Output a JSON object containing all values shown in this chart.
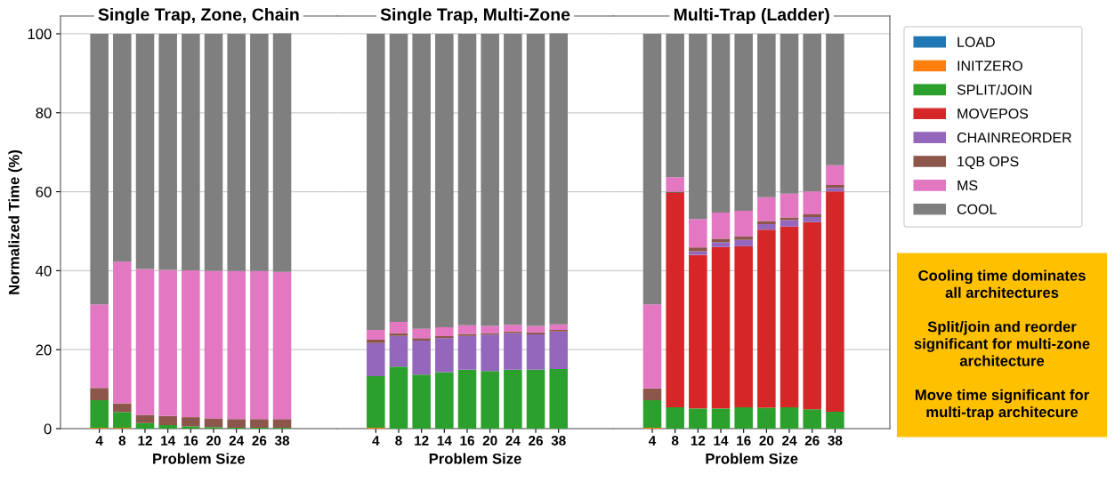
{
  "chart_data": [
    {
      "type": "bar",
      "stacked": true,
      "title": "Single Trap, Zone, Chain",
      "xlabel": "Problem Size",
      "ylabel": "Normalized Time (%)",
      "categories": [
        "4",
        "8",
        "12",
        "14",
        "16",
        "20",
        "24",
        "26",
        "38"
      ],
      "ylim": [
        0,
        104.5
      ],
      "yticks": [
        0,
        20,
        40,
        60,
        80,
        100
      ],
      "grid": "y",
      "tick_labels": true,
      "series": [
        {
          "color": "#1f77b4",
          "values": [
            0,
            0,
            0,
            0,
            0,
            0,
            0,
            0,
            0
          ]
        },
        {
          "color": "#ff7f0e",
          "values": [
            0.2,
            0.2,
            0,
            0,
            0,
            0,
            0,
            0,
            0
          ]
        },
        {
          "color": "#2ca02c",
          "values": [
            7.0,
            4.0,
            1.4,
            0.9,
            0.6,
            0.4,
            0.2,
            0.2,
            0.2
          ]
        },
        {
          "color": "#d62728",
          "values": [
            0,
            0,
            0,
            0,
            0,
            0,
            0,
            0,
            0
          ]
        },
        {
          "color": "#9467bd",
          "values": [
            0,
            0,
            0,
            0,
            0,
            0,
            0,
            0,
            0
          ]
        },
        {
          "color": "#8c564b",
          "values": [
            3.1,
            2.2,
            2.1,
            2.3,
            2.3,
            2.2,
            2.2,
            2.2,
            2.2
          ]
        },
        {
          "color": "#e377c2",
          "values": [
            21.2,
            35.9,
            36.9,
            37.0,
            37.2,
            37.4,
            37.5,
            37.5,
            37.3
          ]
        },
        {
          "color": "#7f7f7f",
          "values": [
            68.5,
            57.7,
            59.6,
            59.8,
            59.9,
            60.0,
            60.1,
            60.1,
            60.4
          ]
        }
      ]
    },
    {
      "type": "bar",
      "stacked": true,
      "title": "Single Trap, Multi-Zone",
      "xlabel": "Problem Size",
      "categories": [
        "4",
        "8",
        "12",
        "14",
        "16",
        "20",
        "24",
        "26",
        "38"
      ],
      "ylim": [
        0,
        104.5
      ],
      "yticks": [
        0,
        20,
        40,
        60,
        80,
        100
      ],
      "grid": "y",
      "tick_labels": "x",
      "series": [
        {
          "color": "#1f77b4",
          "values": [
            0,
            0,
            0,
            0,
            0,
            0,
            0,
            0,
            0
          ]
        },
        {
          "color": "#ff7f0e",
          "values": [
            0.2,
            0,
            0,
            0,
            0,
            0,
            0,
            0,
            0
          ]
        },
        {
          "color": "#2ca02c",
          "values": [
            13.1,
            15.7,
            13.7,
            14.3,
            14.9,
            14.6,
            14.9,
            14.9,
            15.1
          ]
        },
        {
          "color": "#d62728",
          "values": [
            0,
            0,
            0,
            0,
            0,
            0,
            0,
            0,
            0
          ]
        },
        {
          "color": "#9467bd",
          "values": [
            8.4,
            7.8,
            8.6,
            8.6,
            8.6,
            9.2,
            9.3,
            9.0,
            9.5
          ]
        },
        {
          "color": "#8c564b",
          "values": [
            0.8,
            0.7,
            0.6,
            0.5,
            0.5,
            0.4,
            0.4,
            0.5,
            0.4
          ]
        },
        {
          "color": "#e377c2",
          "values": [
            2.5,
            2.8,
            2.4,
            2.3,
            2.2,
            1.8,
            1.7,
            1.6,
            1.4
          ]
        },
        {
          "color": "#7f7f7f",
          "values": [
            75.0,
            73.0,
            74.7,
            74.3,
            73.8,
            74.0,
            73.7,
            74.0,
            73.7
          ]
        }
      ]
    },
    {
      "type": "bar",
      "stacked": true,
      "title": "Multi-Trap (Ladder)",
      "xlabel": "Problem Size",
      "categories": [
        "4",
        "8",
        "12",
        "14",
        "16",
        "20",
        "24",
        "26",
        "38"
      ],
      "ylim": [
        0,
        104.5
      ],
      "yticks": [
        0,
        20,
        40,
        60,
        80,
        100
      ],
      "grid": "y",
      "tick_labels": "x",
      "legend": "right",
      "annotations": [
        "Cooling time dominates\nall architectures\n\nSplit/join and reorder\nsignificant for multi-zone\narchitecture\n\nMove time significant for\nmulti-trap architecure"
      ],
      "series": [
        {
          "name": "LOAD",
          "color": "#1f77b4",
          "values": [
            0,
            0,
            0,
            0,
            0,
            0,
            0,
            0,
            0
          ]
        },
        {
          "name": "INITZERO",
          "color": "#ff7f0e",
          "values": [
            0.2,
            0,
            0,
            0,
            0,
            0,
            0,
            0,
            0
          ]
        },
        {
          "name": "SPLIT/JOIN",
          "color": "#2ca02c",
          "values": [
            7.0,
            5.4,
            5.1,
            5.1,
            5.4,
            5.3,
            5.4,
            4.9,
            4.3
          ]
        },
        {
          "name": "MOVEPOS",
          "color": "#d62728",
          "values": [
            0,
            54.3,
            38.9,
            40.9,
            40.8,
            45.1,
            45.8,
            47.4,
            55.8
          ]
        },
        {
          "name": "CHAINREORDER",
          "color": "#9467bd",
          "values": [
            0,
            0,
            0.9,
            1.2,
            1.6,
            1.4,
            1.6,
            1.3,
            0.9
          ]
        },
        {
          "name": "1QB OPS",
          "color": "#8c564b",
          "values": [
            3.0,
            0.3,
            1.0,
            0.9,
            0.9,
            0.8,
            0.7,
            0.7,
            0.7
          ]
        },
        {
          "name": "MS",
          "color": "#e377c2",
          "values": [
            21.3,
            3.7,
            7.2,
            6.6,
            6.5,
            6.0,
            6.0,
            5.8,
            5.0
          ]
        },
        {
          "name": "COOL",
          "color": "#7f7f7f",
          "values": [
            68.5,
            36.3,
            46.9,
            45.3,
            44.8,
            41.4,
            40.5,
            39.9,
            33.3
          ]
        }
      ]
    }
  ]
}
